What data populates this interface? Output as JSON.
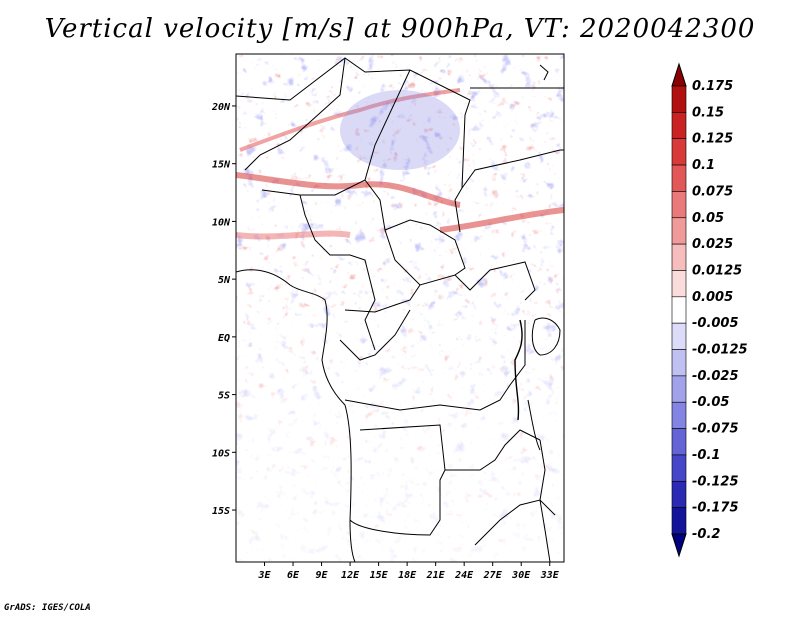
{
  "title": "Vertical velocity [m/s] at 900hPa, VT: 2020042300",
  "footer": "GrADS: IGES/COLA",
  "map": {
    "lat_ticks": [
      "20N",
      "15N",
      "10N",
      "5N",
      "EQ",
      "5S",
      "10S",
      "15S"
    ],
    "lon_ticks": [
      "3E",
      "6E",
      "9E",
      "12E",
      "15E",
      "18E",
      "21E",
      "24E",
      "27E",
      "30E",
      "33E"
    ],
    "lat_range": [
      -19.5,
      24.5
    ],
    "lon_range": [
      0,
      34.5
    ]
  },
  "colorbar": {
    "labels": [
      "0.175",
      "0.15",
      "0.125",
      "0.1",
      "0.075",
      "0.05",
      "0.025",
      "0.0125",
      "0.005",
      "-0.005",
      "-0.0125",
      "-0.025",
      "-0.05",
      "-0.075",
      "-0.1",
      "-0.125",
      "-0.175",
      "-0.2"
    ],
    "colors": [
      "#8b0000",
      "#b01010",
      "#c82222",
      "#d83a3a",
      "#e25858",
      "#ea7a7a",
      "#f19a9a",
      "#f7bcbc",
      "#fbdcdc",
      "#ffffff",
      "#dcdcf8",
      "#c0c0f2",
      "#a2a2ea",
      "#8484e2",
      "#6464d6",
      "#4646c8",
      "#2a2ab4",
      "#14149a",
      "#000080"
    ]
  }
}
